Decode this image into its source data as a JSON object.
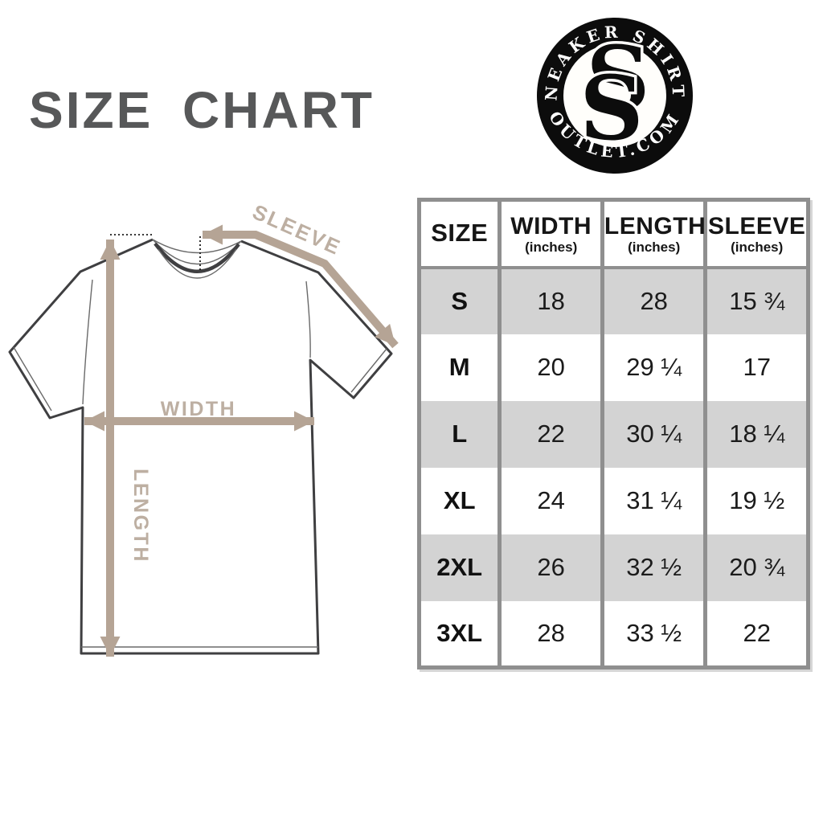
{
  "title": "SIZE CHART",
  "logo": {
    "top_text": "SNEAKER SHIRTS",
    "bottom_text": "OUTLET.COM",
    "monogram_letter": "S"
  },
  "diagram": {
    "width_label": "WIDTH",
    "length_label": "LENGTH",
    "sleeve_label": "SLEEVE",
    "arrow_color": "#b5a495",
    "label_color": "#bdafa2",
    "outline_color": "#3f3f41"
  },
  "table": {
    "border_color": "#8f8f8f",
    "stripe_color": "#d3d3d3",
    "header": {
      "size": "SIZE",
      "width": "WIDTH",
      "length": "LENGTH",
      "sleeve": "SLEEVE",
      "unit": "(inches)"
    },
    "rows": [
      {
        "size": "S",
        "width": "18",
        "length": "28",
        "sleeve": "15 ¾",
        "shaded": true
      },
      {
        "size": "M",
        "width": "20",
        "length": "29 ¼",
        "sleeve": "17",
        "shaded": false
      },
      {
        "size": "L",
        "width": "22",
        "length": "30 ¼",
        "sleeve": "18 ¼",
        "shaded": true
      },
      {
        "size": "XL",
        "width": "24",
        "length": "31 ¼",
        "sleeve": "19 ½",
        "shaded": false
      },
      {
        "size": "2XL",
        "width": "26",
        "length": "32 ½",
        "sleeve": "20 ¾",
        "shaded": true
      },
      {
        "size": "3XL",
        "width": "28",
        "length": "33 ½",
        "sleeve": "22",
        "shaded": false
      }
    ]
  },
  "chart_data": {
    "type": "table",
    "title": "SIZE CHART",
    "columns": [
      "SIZE",
      "WIDTH (inches)",
      "LENGTH (inches)",
      "SLEEVE (inches)"
    ],
    "rows": [
      [
        "S",
        "18",
        "28",
        "15 ¾"
      ],
      [
        "M",
        "20",
        "29 ¼",
        "17"
      ],
      [
        "L",
        "22",
        "30 ¼",
        "18 ¼"
      ],
      [
        "XL",
        "24",
        "31 ¼",
        "19 ½"
      ],
      [
        "2XL",
        "26",
        "32 ½",
        "20 ¾"
      ],
      [
        "3XL",
        "28",
        "33 ½",
        "22"
      ]
    ]
  }
}
